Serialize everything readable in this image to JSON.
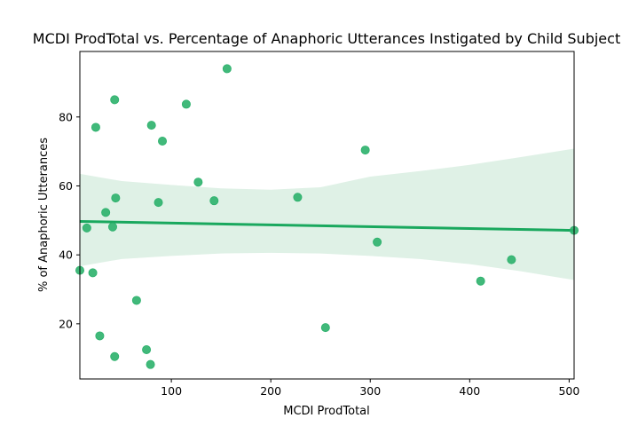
{
  "chart_data": {
    "type": "scatter",
    "title": "MCDI ProdTotal vs. Percentage of Anaphoric Utterances Instigated by Child Subject",
    "xlabel": "MCDI ProdTotal",
    "ylabel": "% of Anaphoric Utterances",
    "xlim": [
      8,
      505
    ],
    "ylim": [
      4,
      99
    ],
    "x_ticks": [
      100,
      200,
      300,
      400,
      500
    ],
    "y_ticks": [
      20,
      40,
      60,
      80
    ],
    "grid": false,
    "colors": {
      "points": "#2cb16c",
      "regression_line": "#1aa85e",
      "confidence_band": "#dff1e6"
    },
    "points": [
      {
        "x": 8,
        "y": 35.5
      },
      {
        "x": 15,
        "y": 47.8
      },
      {
        "x": 21,
        "y": 34.8
      },
      {
        "x": 24,
        "y": 77.0
      },
      {
        "x": 28,
        "y": 16.5
      },
      {
        "x": 34,
        "y": 52.3
      },
      {
        "x": 41,
        "y": 48.1
      },
      {
        "x": 43,
        "y": 85.0
      },
      {
        "x": 43,
        "y": 10.5
      },
      {
        "x": 44,
        "y": 56.5
      },
      {
        "x": 65,
        "y": 26.8
      },
      {
        "x": 75,
        "y": 12.5
      },
      {
        "x": 79,
        "y": 8.2
      },
      {
        "x": 80,
        "y": 77.6
      },
      {
        "x": 87,
        "y": 55.2
      },
      {
        "x": 91,
        "y": 73.0
      },
      {
        "x": 115,
        "y": 83.7
      },
      {
        "x": 127,
        "y": 61.1
      },
      {
        "x": 143,
        "y": 55.7
      },
      {
        "x": 156,
        "y": 94.0
      },
      {
        "x": 227,
        "y": 56.7
      },
      {
        "x": 255,
        "y": 18.9
      },
      {
        "x": 295,
        "y": 70.4
      },
      {
        "x": 307,
        "y": 43.7
      },
      {
        "x": 411,
        "y": 32.4
      },
      {
        "x": 442,
        "y": 38.6
      },
      {
        "x": 505,
        "y": 47.1
      }
    ],
    "regression": {
      "x": [
        8,
        505
      ],
      "y": [
        49.7,
        47.1
      ]
    },
    "confidence_band": {
      "x": [
        8,
        50,
        100,
        150,
        200,
        250,
        300,
        350,
        400,
        450,
        505
      ],
      "upper": [
        63.5,
        61.4,
        60.3,
        59.3,
        58.9,
        59.6,
        62.7,
        64.3,
        66.1,
        68.3,
        70.8
      ],
      "lower": [
        36.7,
        38.8,
        39.7,
        40.4,
        40.6,
        40.4,
        39.7,
        38.8,
        37.3,
        35.3,
        32.7
      ]
    }
  }
}
